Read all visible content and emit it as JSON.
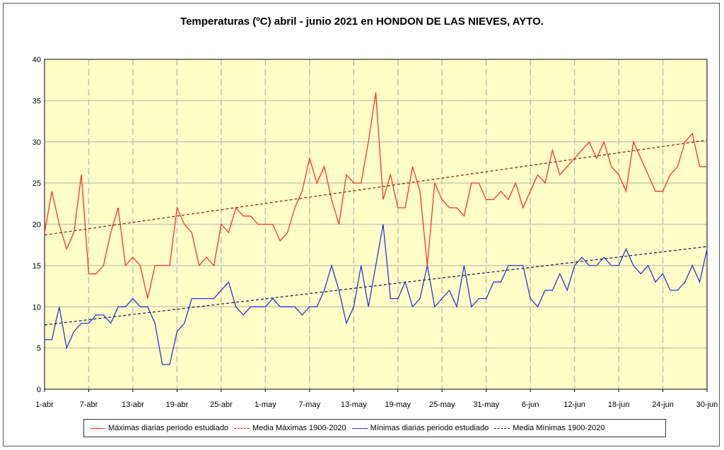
{
  "chart_data": {
    "type": "line",
    "title": "Temperaturas (ºC) abril - junio 2021 en HONDON DE LAS NIEVES, AYTO.",
    "xlabel": "",
    "ylabel": "",
    "ylim": [
      0,
      40
    ],
    "yticks": [
      "0",
      "5",
      "10",
      "15",
      "20",
      "25",
      "30",
      "35",
      "40"
    ],
    "xticks": [
      "1-abr",
      "7-abr",
      "13-abr",
      "19-abr",
      "25-abr",
      "1-may",
      "7-may",
      "13-may",
      "19-may",
      "25-may",
      "31-may",
      "6-jun",
      "12-jun",
      "18-jun",
      "24-jun",
      "30-jun"
    ],
    "grid": true,
    "legend_position": "bottom",
    "series": [
      {
        "name": "Máximas diarias periodo estudiado",
        "color": "#ff3030",
        "style": "solid",
        "values": [
          19,
          24,
          20,
          17,
          19,
          26,
          14,
          14,
          15,
          19,
          22,
          15,
          16,
          15,
          11,
          15,
          15,
          15,
          22,
          20,
          19,
          15,
          16,
          15,
          20,
          19,
          22,
          21,
          21,
          20,
          20,
          20,
          18,
          19,
          22,
          24,
          28,
          25,
          27,
          23,
          20,
          26,
          25,
          25,
          30,
          36,
          23,
          26,
          22,
          22,
          27,
          24,
          15,
          25,
          23,
          22,
          22,
          21,
          25,
          25,
          23,
          23,
          24,
          23,
          25,
          22,
          24,
          26,
          25,
          29,
          26,
          27,
          28,
          29,
          30,
          28,
          30,
          27,
          26,
          24,
          30,
          28,
          26,
          24,
          24,
          26,
          27,
          30,
          31,
          27,
          27
        ]
      },
      {
        "name": "Media Máximas 1900-2020",
        "color": "#8b2a1a",
        "style": "dashed",
        "values_start_end": [
          18.7,
          30.2
        ]
      },
      {
        "name": "Mínimas diarias periodo estudiado",
        "color": "#3030e0",
        "style": "solid",
        "values": [
          6,
          6,
          10,
          5,
          7,
          8,
          8,
          9,
          9,
          8,
          10,
          10,
          11,
          10,
          10,
          8,
          3,
          3,
          7,
          8,
          11,
          11,
          11,
          11,
          12,
          13,
          10,
          9,
          10,
          10,
          10,
          11,
          10,
          10,
          10,
          9,
          10,
          10,
          12,
          15,
          12,
          8,
          10,
          15,
          10,
          15,
          20,
          11,
          11,
          13,
          10,
          11,
          15,
          10,
          11,
          12,
          10,
          15,
          10,
          11,
          11,
          13,
          13,
          15,
          15,
          15,
          11,
          10,
          12,
          12,
          14,
          12,
          15,
          16,
          15,
          15,
          16,
          15,
          15,
          17,
          15,
          14,
          15,
          13,
          14,
          12,
          12,
          13,
          15,
          13,
          17
        ]
      },
      {
        "name": "Media Mínimas 1900-2020",
        "color": "#20205a",
        "style": "dashed",
        "values_start_end": [
          7.8,
          17.3
        ]
      }
    ]
  }
}
